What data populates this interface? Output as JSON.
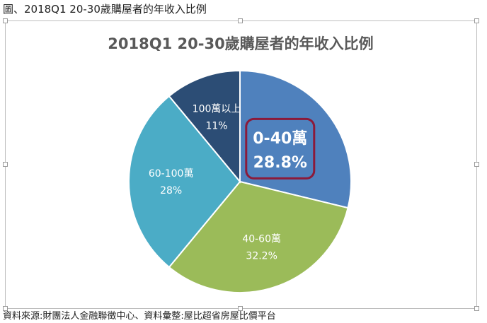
{
  "figure_caption": "圖、2018Q1 20-30歲購屋者的年收入比例",
  "source_note": "資料來源:財團法人金融聯徵中心、資料彙整:屋比超省房屋比價平台",
  "colors": {
    "title": "#595959",
    "highlight_border": "#8b1a3a",
    "slice_border": "#ffffff"
  },
  "chart_data": {
    "type": "pie",
    "title": "2018Q1 20-30歲購屋者的年收入比例",
    "slices": [
      {
        "label": "0-40萬",
        "value": 28.8,
        "display": "28.8%",
        "color": "#4f81bd",
        "highlighted": true
      },
      {
        "label": "40-60萬",
        "value": 32.2,
        "display": "32.2%",
        "color": "#9bbb59",
        "highlighted": false
      },
      {
        "label": "60-100萬",
        "value": 28,
        "display": "28%",
        "color": "#4bacc6",
        "highlighted": false
      },
      {
        "label": "100萬以上",
        "value": 11,
        "display": "11%",
        "color": "#2c4d75",
        "highlighted": false
      }
    ],
    "start": "12 o'clock",
    "direction": "clockwise",
    "legend": "none"
  }
}
